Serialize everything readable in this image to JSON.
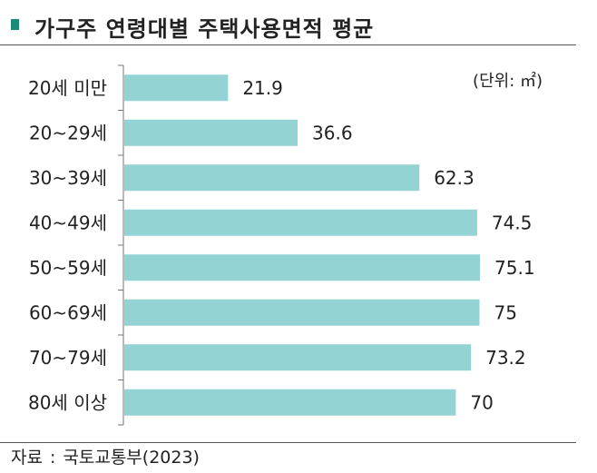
{
  "title": {
    "text": "가구주 연령대별 주택사용면적 평균",
    "marker_color": "#1b8a76"
  },
  "chart_data": {
    "type": "bar",
    "orientation": "horizontal",
    "title": "가구주 연령대별 주택사용면적 평균",
    "unit_label": "(단위: ㎡)",
    "categories": [
      "20세 미만",
      "20~29세",
      "30~39세",
      "40~49세",
      "50~59세",
      "60~69세",
      "70~79세",
      "80세 이상"
    ],
    "values": [
      21.9,
      36.6,
      62.3,
      74.5,
      75.1,
      75,
      73.2,
      70
    ],
    "value_labels": [
      "21.9",
      "36.6",
      "62.3",
      "74.5",
      "75.1",
      "75",
      "73.2",
      "70"
    ],
    "xlim": [
      0,
      100
    ],
    "bar_color": "#93d3d4",
    "grid": false,
    "legend": "none"
  },
  "source": {
    "label": "자료",
    "separator": ":",
    "text": "국토교통부(2023)"
  }
}
